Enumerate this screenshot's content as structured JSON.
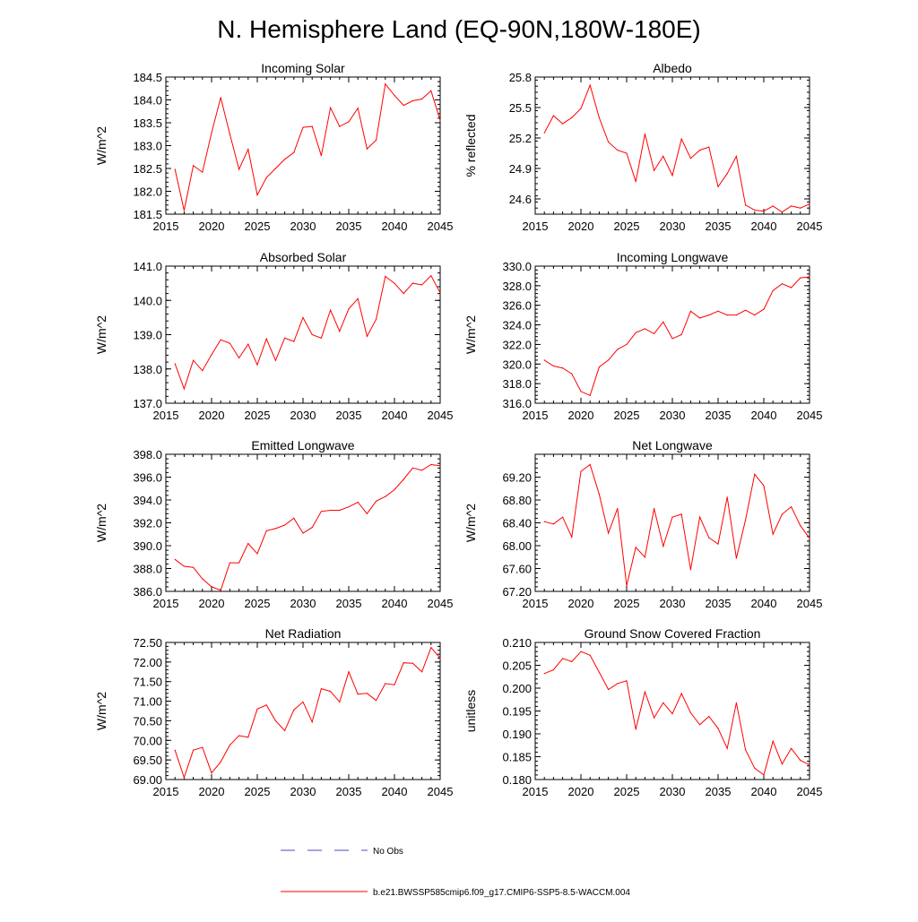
{
  "figure_title": "N. Hemisphere Land (EQ-90N,180W-180E)",
  "legend": [
    {
      "label": "No Obs",
      "color": "#4a4acc",
      "style": "dashed"
    },
    {
      "label": "b.e21.BWSSP585cmip6.f09_g17.CMIP6-SSP5-8.5-WACCM.004",
      "color": "#ff0000",
      "style": "solid"
    }
  ],
  "line_color": "#ff0000",
  "chart_data": [
    {
      "type": "line",
      "title": "Incoming Solar",
      "ylabel": "W/m^2",
      "xlim": [
        2015,
        2045
      ],
      "ylim": [
        181.5,
        184.5
      ],
      "xticks": [
        "2015",
        "2020",
        "2025",
        "2030",
        "2035",
        "2040",
        "2045"
      ],
      "yticks": [
        "181.5",
        "182.0",
        "182.5",
        "183.0",
        "183.5",
        "184.0",
        "184.5"
      ],
      "x": [
        2016,
        2017,
        2018,
        2019,
        2020,
        2021,
        2022,
        2023,
        2024,
        2025,
        2026,
        2027,
        2028,
        2029,
        2030,
        2031,
        2032,
        2033,
        2034,
        2035,
        2036,
        2037,
        2038,
        2039,
        2040,
        2041,
        2042,
        2043,
        2044,
        2045
      ],
      "values": [
        182.48,
        181.58,
        182.56,
        182.42,
        183.28,
        184.05,
        183.25,
        182.48,
        182.92,
        181.92,
        182.3,
        182.5,
        182.7,
        182.85,
        183.4,
        183.42,
        182.78,
        183.83,
        183.42,
        183.52,
        183.82,
        182.93,
        183.12,
        184.35,
        184.1,
        183.88,
        183.98,
        184.02,
        184.2,
        183.55
      ]
    },
    {
      "type": "line",
      "title": "Albedo",
      "ylabel": "% reflected",
      "xlim": [
        2015,
        2045
      ],
      "ylim": [
        24.45,
        25.8
      ],
      "xticks": [
        "2015",
        "2020",
        "2025",
        "2030",
        "2035",
        "2040",
        "2045"
      ],
      "yticks": [
        "24.6",
        "24.9",
        "25.2",
        "25.5",
        "25.8"
      ],
      "x": [
        2016,
        2017,
        2018,
        2019,
        2020,
        2021,
        2022,
        2023,
        2024,
        2025,
        2026,
        2027,
        2028,
        2029,
        2030,
        2031,
        2032,
        2033,
        2034,
        2035,
        2036,
        2037,
        2038,
        2039,
        2040,
        2041,
        2042,
        2043,
        2044,
        2045
      ],
      "values": [
        25.25,
        25.42,
        25.34,
        25.4,
        25.49,
        25.72,
        25.4,
        25.16,
        25.08,
        25.05,
        24.77,
        25.24,
        24.88,
        25.02,
        24.83,
        25.19,
        25.0,
        25.08,
        25.11,
        24.72,
        24.85,
        25.02,
        24.54,
        24.49,
        24.48,
        24.53,
        24.47,
        24.53,
        24.51,
        24.55
      ]
    },
    {
      "type": "line",
      "title": "Absorbed Solar",
      "ylabel": "W/m^2",
      "xlim": [
        2015,
        2045
      ],
      "ylim": [
        137.0,
        141.0
      ],
      "xticks": [
        "2015",
        "2020",
        "2025",
        "2030",
        "2035",
        "2040",
        "2045"
      ],
      "yticks": [
        "137.0",
        "138.0",
        "139.0",
        "140.0",
        "141.0"
      ],
      "x": [
        2016,
        2017,
        2018,
        2019,
        2020,
        2021,
        2022,
        2023,
        2024,
        2025,
        2026,
        2027,
        2028,
        2029,
        2030,
        2031,
        2032,
        2033,
        2034,
        2035,
        2036,
        2037,
        2038,
        2039,
        2040,
        2041,
        2042,
        2043,
        2044,
        2045
      ],
      "values": [
        138.15,
        137.42,
        138.25,
        137.95,
        138.42,
        138.85,
        138.75,
        138.32,
        138.72,
        138.12,
        138.88,
        138.25,
        138.9,
        138.8,
        139.5,
        139.0,
        138.9,
        139.72,
        139.1,
        139.75,
        140.05,
        138.95,
        139.45,
        140.7,
        140.5,
        140.2,
        140.5,
        140.45,
        140.72,
        140.22
      ]
    },
    {
      "type": "line",
      "title": "Incoming Longwave",
      "ylabel": "W/m^2",
      "xlim": [
        2015,
        2045
      ],
      "ylim": [
        316.0,
        330.0
      ],
      "xticks": [
        "2015",
        "2020",
        "2025",
        "2030",
        "2035",
        "2040",
        "2045"
      ],
      "yticks": [
        "316.0",
        "318.0",
        "320.0",
        "322.0",
        "324.0",
        "326.0",
        "328.0",
        "330.0"
      ],
      "x": [
        2016,
        2017,
        2018,
        2019,
        2020,
        2021,
        2022,
        2023,
        2024,
        2025,
        2026,
        2027,
        2028,
        2029,
        2030,
        2031,
        2032,
        2033,
        2034,
        2035,
        2036,
        2037,
        2038,
        2039,
        2040,
        2041,
        2042,
        2043,
        2044,
        2045
      ],
      "values": [
        320.4,
        319.8,
        319.6,
        319.0,
        317.2,
        316.8,
        319.7,
        320.4,
        321.5,
        322.0,
        323.2,
        323.6,
        323.1,
        324.3,
        322.6,
        323.0,
        325.4,
        324.7,
        325.0,
        325.4,
        325.0,
        325.0,
        325.5,
        325.0,
        325.6,
        327.5,
        328.2,
        327.8,
        328.8,
        328.9
      ]
    },
    {
      "type": "line",
      "title": "Emitted Longwave",
      "ylabel": "W/m^2",
      "xlim": [
        2015,
        2045
      ],
      "ylim": [
        386.0,
        398.0
      ],
      "xticks": [
        "2015",
        "2020",
        "2025",
        "2030",
        "2035",
        "2040",
        "2045"
      ],
      "yticks": [
        "386.0",
        "388.0",
        "390.0",
        "392.0",
        "394.0",
        "396.0",
        "398.0"
      ],
      "x": [
        2016,
        2017,
        2018,
        2019,
        2020,
        2021,
        2022,
        2023,
        2024,
        2025,
        2026,
        2027,
        2028,
        2029,
        2030,
        2031,
        2032,
        2033,
        2034,
        2035,
        2036,
        2037,
        2038,
        2039,
        2040,
        2041,
        2042,
        2043,
        2044,
        2045
      ],
      "values": [
        388.8,
        388.2,
        388.1,
        387.1,
        386.4,
        386.1,
        388.5,
        388.5,
        390.2,
        389.3,
        391.3,
        391.5,
        391.8,
        392.4,
        391.1,
        391.6,
        393.0,
        393.1,
        393.1,
        393.4,
        393.8,
        392.8,
        393.9,
        394.3,
        394.9,
        395.8,
        396.8,
        396.6,
        397.1,
        397.0
      ]
    },
    {
      "type": "line",
      "title": "Net Longwave",
      "ylabel": "W/m^2",
      "xlim": [
        2015,
        2045
      ],
      "ylim": [
        67.2,
        69.6
      ],
      "xticks": [
        "2015",
        "2020",
        "2025",
        "2030",
        "2035",
        "2040",
        "2045"
      ],
      "yticks": [
        "67.20",
        "67.60",
        "68.00",
        "68.40",
        "68.80",
        "69.20"
      ],
      "x": [
        2016,
        2017,
        2018,
        2019,
        2020,
        2021,
        2022,
        2023,
        2024,
        2025,
        2026,
        2027,
        2028,
        2029,
        2030,
        2031,
        2032,
        2033,
        2034,
        2035,
        2036,
        2037,
        2038,
        2039,
        2040,
        2041,
        2042,
        2043,
        2044,
        2045
      ],
      "values": [
        68.42,
        68.38,
        68.5,
        68.15,
        69.3,
        69.42,
        68.9,
        68.22,
        68.65,
        67.3,
        67.97,
        67.8,
        68.65,
        67.99,
        68.5,
        68.55,
        67.58,
        68.5,
        68.14,
        68.03,
        68.85,
        67.78,
        68.45,
        69.25,
        69.05,
        68.2,
        68.55,
        68.68,
        68.35,
        68.13
      ]
    },
    {
      "type": "line",
      "title": "Net Radiation",
      "ylabel": "W/m^2",
      "xlim": [
        2015,
        2045
      ],
      "ylim": [
        69.0,
        72.5
      ],
      "xticks": [
        "2015",
        "2020",
        "2025",
        "2030",
        "2035",
        "2040",
        "2045"
      ],
      "yticks": [
        "69.00",
        "69.50",
        "70.00",
        "70.50",
        "71.00",
        "71.50",
        "72.00",
        "72.50"
      ],
      "x": [
        2016,
        2017,
        2018,
        2019,
        2020,
        2021,
        2022,
        2023,
        2024,
        2025,
        2026,
        2027,
        2028,
        2029,
        2030,
        2031,
        2032,
        2033,
        2034,
        2035,
        2036,
        2037,
        2038,
        2039,
        2040,
        2041,
        2042,
        2043,
        2044,
        2045
      ],
      "values": [
        69.75,
        69.05,
        69.75,
        69.82,
        69.17,
        69.45,
        69.88,
        70.12,
        70.08,
        70.8,
        70.9,
        70.5,
        70.25,
        70.78,
        70.98,
        70.47,
        71.32,
        71.25,
        70.98,
        71.75,
        71.18,
        71.2,
        71.02,
        71.45,
        71.42,
        71.98,
        71.97,
        71.75,
        72.37,
        72.1
      ]
    },
    {
      "type": "line",
      "title": "Ground Snow Covered Fraction",
      "ylabel": "unitless",
      "xlim": [
        2015,
        2045
      ],
      "ylim": [
        0.18,
        0.21
      ],
      "xticks": [
        "2015",
        "2020",
        "2025",
        "2030",
        "2035",
        "2040",
        "2045"
      ],
      "yticks": [
        "0.180",
        "0.185",
        "0.190",
        "0.195",
        "0.200",
        "0.205",
        "0.210"
      ],
      "x": [
        2016,
        2017,
        2018,
        2019,
        2020,
        2021,
        2022,
        2023,
        2024,
        2025,
        2026,
        2027,
        2028,
        2029,
        2030,
        2031,
        2032,
        2033,
        2034,
        2035,
        2036,
        2037,
        2038,
        2039,
        2040,
        2041,
        2042,
        2043,
        2044,
        2045
      ],
      "values": [
        0.2032,
        0.204,
        0.2065,
        0.2058,
        0.208,
        0.2072,
        0.2035,
        0.1997,
        0.201,
        0.2016,
        0.191,
        0.1992,
        0.1935,
        0.1968,
        0.1944,
        0.1988,
        0.1946,
        0.192,
        0.1938,
        0.1912,
        0.1868,
        0.1968,
        0.1865,
        0.1825,
        0.181,
        0.1884,
        0.1834,
        0.1868,
        0.1842,
        0.1832
      ]
    }
  ]
}
